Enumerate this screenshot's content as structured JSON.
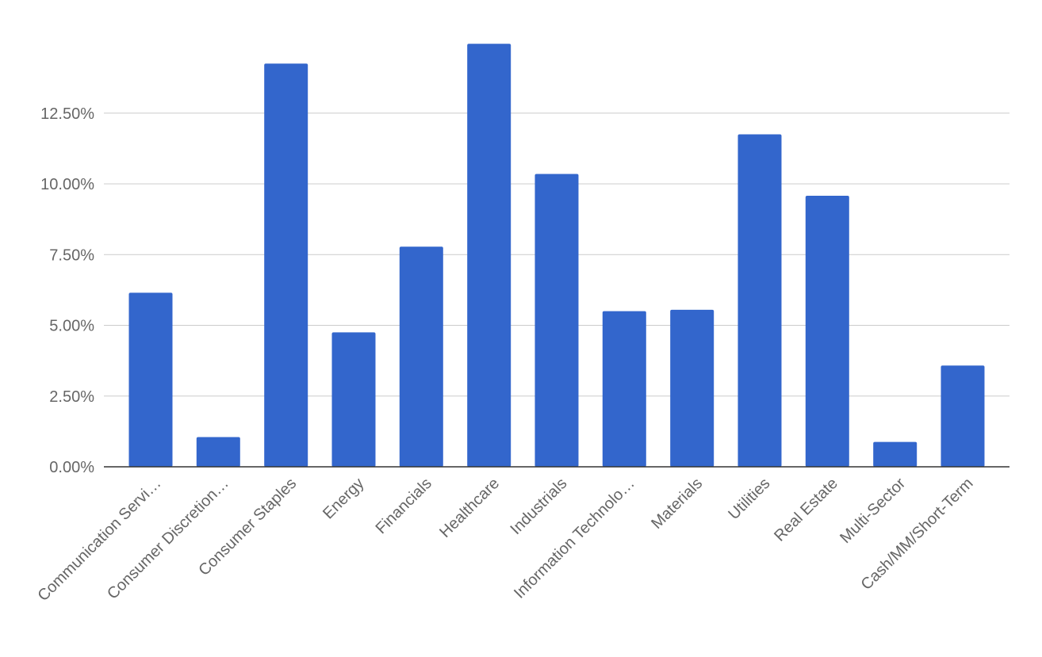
{
  "chart_data": {
    "type": "bar",
    "categories": [
      "Communication Servi…",
      "Consumer Discretion…",
      "Consumer Staples",
      "Energy",
      "Financials",
      "Healthcare",
      "Industrials",
      "Information Technolo…",
      "Materials",
      "Utilities",
      "Real Estate",
      "Multi-Sector",
      "Cash/MM/Short-Term"
    ],
    "values": [
      6.15,
      1.05,
      14.25,
      4.75,
      7.78,
      14.95,
      10.35,
      5.5,
      5.55,
      11.75,
      9.58,
      0.88,
      3.58
    ],
    "y_ticks": [
      "0.00%",
      "2.50%",
      "5.00%",
      "7.50%",
      "10.00%",
      "12.50%"
    ],
    "y_tick_values": [
      0,
      2.5,
      5,
      7.5,
      10,
      12.5
    ],
    "ylim": [
      0,
      15
    ],
    "grid": true,
    "bar_color": "#3366cc"
  }
}
